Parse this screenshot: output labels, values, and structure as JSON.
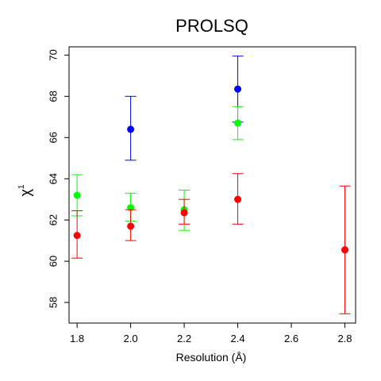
{
  "chart_data": {
    "type": "scatter",
    "title": "PROLSQ",
    "xlabel": "Resolution (Å)",
    "ylabel": "χ¹",
    "ylabel_base": "χ",
    "ylabel_sup": "1",
    "xlim": [
      1.77,
      2.84
    ],
    "ylim": [
      57.0,
      70.4
    ],
    "x_ticks": [
      1.8,
      2.0,
      2.2,
      2.4,
      2.6,
      2.8
    ],
    "x_tick_labels": [
      "1.8",
      "2.0",
      "2.2",
      "2.4",
      "2.6",
      "2.8"
    ],
    "y_ticks": [
      58,
      60,
      62,
      64,
      66,
      68,
      70
    ],
    "y_tick_labels": [
      "58",
      "60",
      "62",
      "64",
      "66",
      "68",
      "70"
    ],
    "grid": false,
    "legend": "none",
    "series": [
      {
        "color": "#0000ff",
        "points": [
          {
            "x": 2.0,
            "y": 66.4,
            "lower": 64.9,
            "upper": 68.0
          },
          {
            "x": 2.4,
            "y": 68.35,
            "lower": 66.75,
            "upper": 69.95
          }
        ]
      },
      {
        "color": "#00ff00",
        "points": [
          {
            "x": 1.8,
            "y": 63.2,
            "lower": 62.2,
            "upper": 64.2
          },
          {
            "x": 2.0,
            "y": 62.6,
            "lower": 61.95,
            "upper": 63.3
          },
          {
            "x": 2.2,
            "y": 62.5,
            "lower": 61.5,
            "upper": 63.45
          },
          {
            "x": 2.4,
            "y": 66.7,
            "lower": 65.9,
            "upper": 67.5
          }
        ]
      },
      {
        "color": "#ff0000",
        "points": [
          {
            "x": 1.8,
            "y": 61.25,
            "lower": 60.15,
            "upper": 62.45
          },
          {
            "x": 2.0,
            "y": 61.7,
            "lower": 61.0,
            "upper": 62.5
          },
          {
            "x": 2.2,
            "y": 62.35,
            "lower": 61.8,
            "upper": 63.0
          },
          {
            "x": 2.4,
            "y": 63.0,
            "lower": 61.8,
            "upper": 64.25
          },
          {
            "x": 2.8,
            "y": 60.55,
            "lower": 57.45,
            "upper": 63.65
          }
        ]
      }
    ]
  }
}
